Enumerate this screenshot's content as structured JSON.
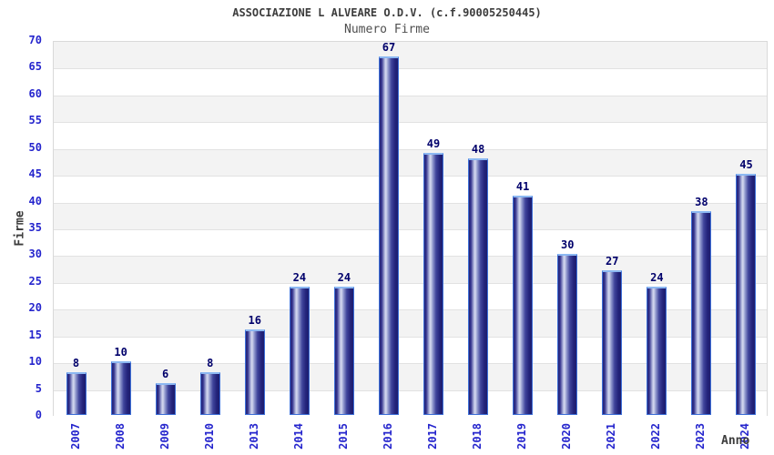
{
  "chart_data": {
    "type": "bar",
    "title": "ASSOCIAZIONE L ALVEARE O.D.V. (c.f.90005250445)",
    "subtitle": "Numero Firme",
    "xlabel": "Anno",
    "ylabel": "Firme",
    "categories": [
      "2007",
      "2008",
      "2009",
      "2010",
      "2013",
      "2014",
      "2015",
      "2016",
      "2017",
      "2018",
      "2019",
      "2020",
      "2021",
      "2022",
      "2023",
      "2024"
    ],
    "values": [
      8,
      10,
      6,
      8,
      16,
      24,
      24,
      67,
      49,
      48,
      41,
      30,
      27,
      24,
      38,
      45
    ],
    "ylim": [
      0,
      70
    ],
    "ytick_step": 5,
    "grid": "horizontal alternating bands, gray on top band",
    "legend": "none",
    "colors": {
      "title": "#3c3c3c",
      "subtitle": "#4f4f4f",
      "tick_label": "#2525cd",
      "value_label": "#00006b",
      "axis_label": "#3c3c3c",
      "band_gray": "#f3f3f3",
      "band_white": "#ffffff",
      "gridline": "#e2e2e2",
      "plot_border": "#d9d9d9",
      "bar_border": "#3d6fd8",
      "bar_top_cap": "#8cb8f2",
      "bar_dark": "#1d1d6e",
      "bar_mid": "#40459c",
      "bar_light": "#d6daf0"
    }
  }
}
